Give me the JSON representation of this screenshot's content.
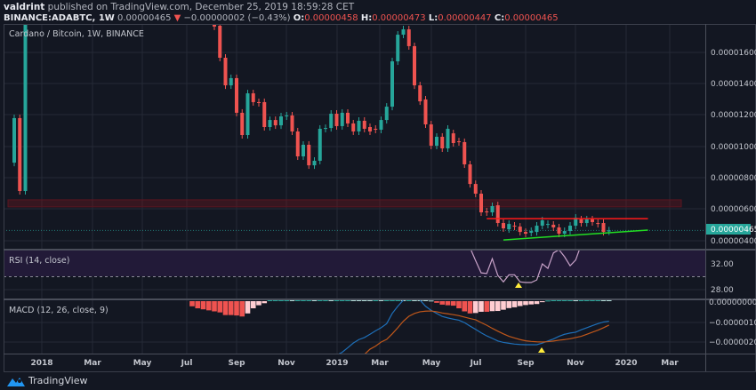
{
  "header": {
    "author": "valdrint",
    "published_text": "published on TradingView.com, December 25, 2019 18:59:28 CET",
    "symbol": "BINANCE:ADABTC, 1W",
    "last_price": "0.00000465",
    "change_arrow": "▼",
    "change": "−0.00000002 (−0.43%)",
    "open_label": "O:",
    "open": "0.00000458",
    "high_label": "H:",
    "high": "0.00000473",
    "low_label": "L:",
    "low": "0.00000447",
    "close_label": "C:",
    "close": "0.00000465"
  },
  "main_pane": {
    "title": "Cardano / Bitcoin, 1W, BINANCE",
    "price_ticks": [
      "0.00001600",
      "0.00001400",
      "0.00001200",
      "0.00001000",
      "0.00000800",
      "0.00000600",
      "0.00000400"
    ],
    "last_price_tag": "0.00000465"
  },
  "rsi_pane": {
    "title": "RSI (14, close)",
    "ticks": [
      "32.00",
      "28.00"
    ]
  },
  "macd_pane": {
    "title": "MACD (12, 26, close, 9)",
    "ticks": [
      "0.00000000",
      "−0.00000100",
      "−0.00000200"
    ]
  },
  "x_axis": {
    "labels": [
      "2018",
      "Mar",
      "May",
      "Jul",
      "Sep",
      "Nov",
      "2019",
      "Mar",
      "May",
      "Jul",
      "Sep",
      "Nov",
      "2020",
      "Mar"
    ]
  },
  "footer": {
    "brand": "TradingView"
  },
  "colors": {
    "up": "#26a69a",
    "down": "#ef5350",
    "background": "#131722",
    "macd": "#1e6fb8",
    "signal": "#c0571a",
    "rsi": "#c8a2c8",
    "resistance": "#ff1a1a",
    "support": "#22dd22"
  },
  "chart_data": {
    "type": "candlestick",
    "interval": "1W",
    "first_bar": "2017-12-04",
    "ylim": [
      3.4e-06,
      1.77e-05
    ],
    "grid": true,
    "candles_open_close": [
      [
        8.97e-06,
        1.181e-05
      ],
      [
        1.181e-05,
        7.16e-06
      ],
      [
        7.16e-06,
        2.1e-05
      ],
      null,
      null,
      null,
      null,
      null,
      null,
      null,
      null,
      null,
      null,
      null,
      null,
      null,
      null,
      null,
      null,
      null,
      null,
      null,
      null,
      null,
      null,
      null,
      null,
      null,
      null,
      null,
      null,
      null,
      null,
      null,
      null,
      null,
      [
        1.781e-05,
        1.765e-05
      ],
      [
        1.77e-05,
        1.566e-05
      ],
      [
        1.566e-05,
        1.39e-05
      ],
      [
        1.39e-05,
        1.436e-05
      ],
      [
        1.436e-05,
        1.215e-05
      ],
      [
        1.215e-05,
        1.073e-05
      ],
      [
        1.073e-05,
        1.339e-05
      ],
      [
        1.339e-05,
        1.283e-05
      ],
      [
        1.283e-05,
        1.277e-05
      ],
      [
        1.283e-05,
        1.124e-05
      ],
      [
        1.124e-05,
        1.169e-05
      ],
      [
        1.169e-05,
        1.135e-05
      ],
      [
        1.135e-05,
        1.192e-05
      ],
      [
        1.192e-05,
        1.198e-05
      ],
      [
        1.198e-05,
        1.096e-05
      ],
      [
        1.096e-05,
        9.37e-06
      ],
      [
        9.37e-06,
        1.011e-05
      ],
      [
        1.011e-05,
        8.8e-06
      ],
      [
        8.8e-06,
        9.09e-06
      ],
      [
        9.09e-06,
        1.113e-05
      ],
      [
        1.113e-05,
        1.118e-05
      ],
      [
        1.118e-05,
        1.209e-05
      ],
      [
        1.209e-05,
        1.13e-05
      ],
      [
        1.13e-05,
        1.215e-05
      ],
      [
        1.215e-05,
        1.147e-05
      ],
      [
        1.147e-05,
        1.096e-05
      ],
      [
        1.096e-05,
        1.164e-05
      ],
      [
        1.164e-05,
        1.113e-05
      ],
      [
        1.124e-05,
        1.096e-05
      ],
      [
        1.113e-05,
        1.107e-05
      ],
      [
        1.107e-05,
        1.169e-05
      ],
      [
        1.169e-05,
        1.254e-05
      ],
      [
        1.254e-05,
        1.543e-05
      ],
      [
        1.543e-05,
        1.713e-05
      ],
      [
        1.713e-05,
        1.747e-05
      ],
      [
        1.747e-05,
        1.64e-05
      ],
      [
        1.64e-05,
        1.39e-05
      ],
      [
        1.39e-05,
        1.288e-05
      ],
      [
        1.3e-05,
        1.141e-05
      ],
      [
        1.141e-05,
        1.005e-05
      ],
      [
        1.005e-05,
        1.062e-05
      ],
      [
        1.062e-05,
        9.88e-06
      ],
      [
        9.88e-06,
        1.113e-05
      ],
      [
        1.084e-05,
        1.022e-05
      ],
      [
        1.033e-05,
        1.028e-05
      ],
      [
        1.028e-05,
        8.86e-06
      ],
      [
        8.86e-06,
        7.61e-06
      ],
      [
        7.61e-06,
        6.99e-06
      ],
      [
        6.99e-06,
        5.8e-06
      ],
      [
        5.86e-06,
        5.8e-06
      ],
      [
        5.8e-06,
        6.2e-06
      ],
      [
        6.25e-06,
        5.12e-06
      ],
      [
        5.12e-06,
        4.78e-06
      ],
      [
        4.72e-06,
        5.06e-06
      ],
      [
        4.95e-06,
        4.89e-06
      ],
      [
        4.89e-06,
        4.55e-06
      ],
      [
        4.55e-06,
        4.44e-06
      ],
      [
        4.5e-06,
        4.61e-06
      ],
      [
        4.55e-06,
        4.95e-06
      ],
      [
        4.95e-06,
        5.29e-06
      ],
      [
        5.01e-06,
        5.06e-06
      ],
      [
        5.01e-06,
        4.84e-06
      ],
      [
        4.84e-06,
        4.44e-06
      ],
      [
        4.44e-06,
        4.61e-06
      ],
      [
        4.61e-06,
        4.95e-06
      ],
      [
        4.95e-06,
        5.46e-06
      ],
      [
        5.35e-06,
        5.12e-06
      ],
      [
        5.12e-06,
        5.35e-06
      ],
      [
        5.35e-06,
        5.18e-06
      ],
      [
        5.12e-06,
        5.06e-06
      ],
      [
        5.12e-06,
        4.55e-06
      ],
      [
        4.58e-06,
        4.65e-06
      ]
    ],
    "zone": {
      "from": 6.15e-06,
      "to": 6.6e-06
    },
    "resistance_line": {
      "from_bar": 85,
      "to_bar": 114,
      "price": 5.4e-06
    },
    "support_line": {
      "from_bar": 88,
      "to_bar": 114,
      "price_start": 4.04e-06,
      "price_end": 4.67e-06
    },
    "rsi": {
      "start_bar": 82,
      "ylim": [
        26.6,
        34.07
      ],
      "band": [
        30,
        70
      ],
      "values": [
        34.5,
        32.5,
        30.6,
        30.5,
        32.8,
        30.2,
        29.2,
        30.3,
        30.3,
        29.2,
        29.1,
        29.1,
        29.5,
        32.0,
        31.3,
        33.7,
        34.2,
        33.1,
        31.7,
        32.6,
        35.0
      ]
    },
    "macd": {
      "start_bar": 58,
      "ylim": [
        -2.6e-06,
        9e-08
      ],
      "values": [
        -2.65e-06,
        -2.5e-06,
        -2.28e-06,
        -2.05e-06,
        -1.88e-06,
        -1.78e-06,
        -1.62e-06,
        -1.45e-06,
        -1.3e-06,
        -1.1e-06,
        -6e-07,
        -2.5e-07,
        5e-08,
        3e-07,
        2.5e-07,
        5e-08,
        -2.5e-07,
        -4.5e-07,
        -6e-07,
        -7.5e-07,
        -8.2e-07,
        -8.8e-07,
        -9.3e-07,
        -1.05e-06,
        -1.22e-06,
        -1.38e-06,
        -1.55e-06,
        -1.7e-06,
        -1.82e-06,
        -1.95e-06,
        -2.02e-06,
        -2.06e-06,
        -2.1e-06,
        -2.12e-06,
        -2.13e-06,
        -2.13e-06,
        -2.13e-06,
        -2.05e-06,
        -1.95e-06,
        -1.85e-06,
        -1.72e-06,
        -1.62e-06,
        -1.56e-06,
        -1.52e-06,
        -1.4e-06,
        -1.3e-06,
        -1.2e-06,
        -1.1e-06,
        -1.02e-06,
        -9.8e-07
      ]
    },
    "signal": {
      "start_bar": 63,
      "values": [
        -2.61e-06,
        -2.35e-06,
        -2.2e-06,
        -2e-06,
        -1.87e-06,
        -1.6e-06,
        -1.3e-06,
        -9.8e-07,
        -7.4e-07,
        -6e-07,
        -5.2e-07,
        -4.9e-07,
        -4.8e-07,
        -5.2e-07,
        -5.8e-07,
        -6.2e-07,
        -6.6e-07,
        -7.1e-07,
        -7.8e-07,
        -8.5e-07,
        -9.1e-07,
        -1.05e-06,
        -1.18e-06,
        -1.33e-06,
        -1.47e-06,
        -1.6e-06,
        -1.72e-06,
        -1.8e-06,
        -1.88e-06,
        -1.94e-06,
        -1.97e-06,
        -1.99e-06,
        -2e-06,
        -1.98e-06,
        -1.95e-06,
        -1.91e-06,
        -1.88e-06,
        -1.84e-06,
        -1.78e-06,
        -1.72e-06,
        -1.62e-06,
        -1.52e-06,
        -1.42e-06,
        -1.3e-06,
        -1.17e-06
      ]
    },
    "histogram": {
      "start_bar": 32,
      "values": [
        -2.5e-07,
        -3.5e-07,
        -4e-07,
        -4.5e-07,
        -5e-07,
        -5.5e-07,
        -6.8e-07,
        -6.8e-07,
        -7e-07,
        -7.5e-07,
        -6e-07,
        -3.5e-07,
        -2e-07,
        -1e-07,
        2e-07,
        4e-07,
        6e-07,
        8e-07,
        7e-07,
        9e-07,
        1e-06,
        1.1e-06,
        1e-06,
        1.2e-06,
        1.3e-06,
        1e-06,
        1.1e-06,
        1.2e-06,
        1.3e-06,
        1.2e-06,
        1.1e-06,
        8.3e-07,
        7.3e-07,
        7.5e-07,
        7e-07,
        7.7e-07,
        1e-06,
        1.05e-06,
        1.03e-06,
        1.04e-06,
        8.5e-07,
        5.7e-07,
        2.4e-07,
        3e-08,
        -8e-08,
        -1.7e-07,
        -2e-07,
        -2.2e-07,
        -3.5e-07,
        -5e-07,
        -6e-07,
        -5.8e-07,
        -5.2e-07,
        -5.2e-07,
        -4.9e-07,
        -4.8e-07,
        -4.2e-07,
        -3.4e-07,
        -3e-07,
        -2.4e-07,
        -1.9e-07,
        -1.6e-07,
        -1.4e-07,
        -5e-08,
        3e-08,
        1e-07,
        1.9e-07,
        2.6e-07,
        2.8e-07,
        2.6e-07,
        3.2e-07,
        3.2e-07,
        3.2e-07,
        3.2e-07,
        2.8e-07,
        1.9e-07
      ]
    }
  }
}
